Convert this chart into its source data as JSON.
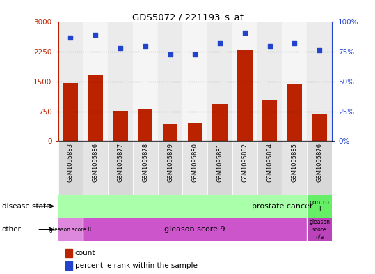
{
  "title": "GDS5072 / 221193_s_at",
  "samples": [
    "GSM1095883",
    "GSM1095886",
    "GSM1095877",
    "GSM1095878",
    "GSM1095879",
    "GSM1095880",
    "GSM1095881",
    "GSM1095882",
    "GSM1095884",
    "GSM1095885",
    "GSM1095876"
  ],
  "counts": [
    1470,
    1680,
    760,
    790,
    430,
    450,
    930,
    2290,
    1020,
    1420,
    700
  ],
  "percentiles": [
    87,
    89,
    78,
    80,
    73,
    73,
    82,
    91,
    80,
    82,
    76
  ],
  "ylim_left": [
    0,
    3000
  ],
  "ylim_right": [
    0,
    100
  ],
  "yticks_left": [
    0,
    750,
    1500,
    2250,
    3000
  ],
  "yticks_right": [
    0,
    25,
    50,
    75,
    100
  ],
  "ytick_labels_left": [
    "0",
    "750",
    "1500",
    "2250",
    "3000"
  ],
  "ytick_labels_right": [
    "0%",
    "25%",
    "50%",
    "75%",
    "100%"
  ],
  "hlines": [
    750,
    1500,
    2250
  ],
  "bar_color": "#bb2200",
  "dot_color": "#2244cc",
  "disease_state_label": "disease state",
  "other_label": "other",
  "prostate_cancer_color": "#aaffaa",
  "control_color": "#66ee66",
  "gleason8_color": "#dd88dd",
  "gleason9_color": "#cc55cc",
  "gleasonNA_color": "#bb44bb",
  "legend_bar": "count",
  "legend_dot": "percentile rank within the sample",
  "bg_color": "#ffffff"
}
